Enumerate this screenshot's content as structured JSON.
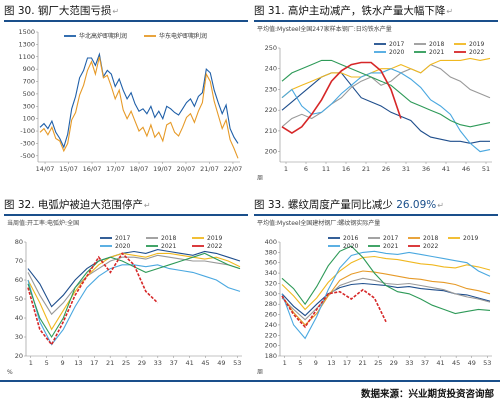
{
  "panels": [
    {
      "id": "p30",
      "title_prefix": "图 30.",
      "title_text": "钢厂大范围亏损",
      "title_highlight": ""
    },
    {
      "id": "p31",
      "title_prefix": "图 31.",
      "title_text": "高炉主动减产，铁水产量大幅下降",
      "title_highlight": ""
    },
    {
      "id": "p32",
      "title_prefix": "图 32.",
      "title_text": "电弧炉被迫大范围停产",
      "title_highlight": ""
    },
    {
      "id": "p33",
      "title_prefix": "图 33.",
      "title_text": "螺纹周度产量同比减少 ",
      "title_highlight": "26.09%"
    }
  ],
  "return_mark": "↵",
  "source": "数据来源：兴业期货投资咨询部",
  "chart_data": [
    {
      "id": "p30",
      "type": "line",
      "subtitle": "",
      "x_ticks": [
        "14/07",
        "15/07",
        "16/07",
        "17/07",
        "18/07",
        "19/07",
        "20/07",
        "21/07",
        "22/07"
      ],
      "ylim": [
        -600,
        1500
      ],
      "y_ticks": [
        1500,
        1300,
        1100,
        900,
        700,
        500,
        300,
        100,
        -100,
        -300,
        -500
      ],
      "legend_placement": "top-center",
      "grid": false,
      "series": [
        {
          "name": "华北高炉即期利润",
          "color": "#1f5fa8",
          "values": [
            -40,
            20,
            -60,
            60,
            -120,
            -220,
            -360,
            -150,
            260,
            460,
            760,
            880,
            1080,
            1080,
            960,
            1140,
            780,
            880,
            820,
            620,
            740,
            560,
            420,
            520,
            340,
            220,
            260,
            180,
            300,
            120,
            220,
            100,
            300,
            260,
            200,
            160,
            260,
            360,
            420,
            300,
            460,
            520,
            900,
            840,
            560,
            360,
            180,
            320,
            -60,
            -200,
            -300
          ]
        },
        {
          "name": "华东电炉即期利润",
          "color": "#e69a28",
          "values": [
            -120,
            -60,
            -160,
            -40,
            -220,
            -260,
            -420,
            -300,
            80,
            200,
            480,
            640,
            880,
            1020,
            820,
            1100,
            760,
            800,
            620,
            420,
            560,
            240,
            100,
            220,
            60,
            -100,
            -40,
            -180,
            0,
            -200,
            -120,
            -260,
            0,
            40,
            -120,
            -180,
            -40,
            120,
            180,
            40,
            220,
            360,
            820,
            700,
            380,
            160,
            -60,
            80,
            -240,
            -380,
            -540
          ]
        }
      ]
    },
    {
      "id": "p31",
      "type": "line",
      "subtitle": "平均值:Mysteel全国247家样本钢厂:日均铁水产量",
      "unit_label": "周",
      "x_ticks": [
        "1",
        "6",
        "11",
        "16",
        "21",
        "26",
        "31",
        "36",
        "41",
        "46",
        "51"
      ],
      "ylim": [
        195,
        250
      ],
      "y_ticks": [
        250,
        240,
        230,
        220,
        210,
        200
      ],
      "legend_placement": "top-right",
      "grid": false,
      "series": [
        {
          "name": "2017",
          "color": "#1f4e8c",
          "values": [
            220,
            224,
            228,
            232,
            236,
            238,
            238,
            232,
            226,
            224,
            222,
            219,
            217,
            215,
            210,
            207,
            206,
            205,
            205,
            204,
            205,
            205
          ]
        },
        {
          "name": "2018",
          "color": "#999999",
          "values": [
            212,
            216,
            218,
            216,
            219,
            223,
            226,
            231,
            234,
            236,
            232,
            234,
            238,
            240,
            238,
            242,
            240,
            236,
            234,
            230,
            228,
            226
          ]
        },
        {
          "name": "2019",
          "color": "#f0b820",
          "values": [
            226,
            230,
            232,
            234,
            236,
            238,
            238,
            236,
            236,
            238,
            240,
            240,
            242,
            240,
            238,
            242,
            244,
            244,
            244,
            245,
            244,
            245
          ]
        },
        {
          "name": "2020",
          "color": "#4aa8e0",
          "values": [
            226,
            230,
            222,
            218,
            219,
            223,
            228,
            232,
            236,
            238,
            238,
            240,
            238,
            235,
            231,
            225,
            222,
            218,
            210,
            204,
            200,
            201
          ]
        },
        {
          "name": "2021",
          "color": "#2e9a58",
          "values": [
            234,
            238,
            240,
            242,
            244,
            244,
            242,
            240,
            238,
            236,
            234,
            232,
            228,
            224,
            222,
            220,
            218,
            215,
            213,
            212,
            213,
            214
          ]
        },
        {
          "name": "2022",
          "color": "#d62728",
          "values": [
            212,
            209,
            212,
            218,
            225,
            234,
            239,
            242,
            243,
            243,
            239,
            230,
            216
          ]
        }
      ]
    },
    {
      "id": "p32",
      "type": "line",
      "subtitle": "当周值:开工率:电弧炉:全国",
      "unit_label": "%",
      "x_ticks": [
        "1",
        "5",
        "9",
        "13",
        "17",
        "21",
        "25",
        "29",
        "33",
        "37",
        "41",
        "45",
        "49",
        "53"
      ],
      "ylim": [
        20,
        80
      ],
      "y_ticks": [
        80,
        70,
        60,
        50,
        40,
        30,
        20
      ],
      "legend_placement": "top-right",
      "grid": false,
      "series": [
        {
          "name": "2017",
          "color": "#1f4e8c",
          "values": [
            66,
            58,
            46,
            52,
            60,
            66,
            70,
            72,
            74,
            75,
            74,
            76,
            75,
            74,
            73,
            75,
            74,
            72,
            70
          ]
        },
        {
          "name": "2018",
          "color": "#999999",
          "values": [
            64,
            52,
            42,
            48,
            56,
            62,
            66,
            70,
            72,
            72,
            71,
            73,
            72,
            71,
            70,
            70,
            69,
            68,
            66
          ]
        },
        {
          "name": "2019",
          "color": "#f0b820",
          "values": [
            60,
            48,
            34,
            44,
            54,
            62,
            68,
            72,
            74,
            73,
            72,
            74,
            74,
            73,
            72,
            71,
            72,
            70,
            67
          ]
        },
        {
          "name": "2020",
          "color": "#4aa8e0",
          "values": [
            60,
            38,
            26,
            34,
            46,
            56,
            62,
            66,
            68,
            68,
            67,
            68,
            66,
            65,
            64,
            62,
            60,
            56,
            54
          ]
        },
        {
          "name": "2021",
          "color": "#2e9a58",
          "values": [
            58,
            40,
            30,
            40,
            56,
            64,
            70,
            72,
            70,
            67,
            64,
            66,
            68,
            70,
            72,
            74,
            71,
            68,
            66
          ]
        },
        {
          "name": "2022",
          "color": "#d62728",
          "values": [
            56,
            34,
            26,
            38,
            52,
            62,
            72,
            64,
            74,
            68,
            54,
            48
          ]
        }
      ]
    },
    {
      "id": "p33",
      "type": "line",
      "subtitle": "平均值:Mysteel全国建材钢厂:螺纹钢实际产量",
      "unit_label": "周",
      "x_ticks": [
        "1",
        "5",
        "9",
        "13",
        "17",
        "21",
        "25",
        "29",
        "33",
        "37",
        "41",
        "45",
        "49",
        "53"
      ],
      "ylim": [
        180,
        400
      ],
      "y_ticks": [
        400,
        380,
        360,
        340,
        320,
        300,
        280,
        260,
        240,
        220,
        200,
        180
      ],
      "legend_placement": "top-right",
      "grid": false,
      "series": [
        {
          "name": "2016",
          "color": "#1f4e8c",
          "values": [
            300,
            276,
            258,
            280,
            300,
            312,
            318,
            320,
            318,
            316,
            312,
            314,
            310,
            308,
            306,
            300,
            298,
            292,
            286
          ]
        },
        {
          "name": "2017",
          "color": "#999999",
          "values": [
            292,
            270,
            250,
            272,
            296,
            316,
            324,
            330,
            326,
            320,
            318,
            320,
            316,
            312,
            308,
            300,
            294,
            290,
            284
          ]
        },
        {
          "name": "2018",
          "color": "#e69a28",
          "values": [
            296,
            264,
            240,
            262,
            296,
            326,
            338,
            344,
            342,
            338,
            334,
            330,
            328,
            324,
            322,
            318,
            310,
            306,
            300
          ]
        },
        {
          "name": "2019",
          "color": "#f0b820",
          "values": [
            318,
            296,
            270,
            292,
            322,
            344,
            360,
            370,
            372,
            368,
            366,
            362,
            358,
            356,
            352,
            350,
            356,
            352,
            346
          ]
        },
        {
          "name": "2020",
          "color": "#4aa8e0",
          "values": [
            300,
            240,
            214,
            256,
            308,
            350,
            374,
            380,
            382,
            378,
            376,
            380,
            376,
            372,
            368,
            364,
            360,
            344,
            334
          ]
        },
        {
          "name": "2021",
          "color": "#2e9a58",
          "values": [
            330,
            310,
            280,
            314,
            354,
            382,
            392,
            370,
            340,
            316,
            304,
            300,
            290,
            278,
            270,
            262,
            266,
            270,
            268
          ]
        },
        {
          "name": "2022",
          "color": "#d62728",
          "values": [
            296,
            260,
            236,
            270,
            300,
            304,
            290,
            308,
            292,
            246
          ]
        }
      ]
    }
  ]
}
